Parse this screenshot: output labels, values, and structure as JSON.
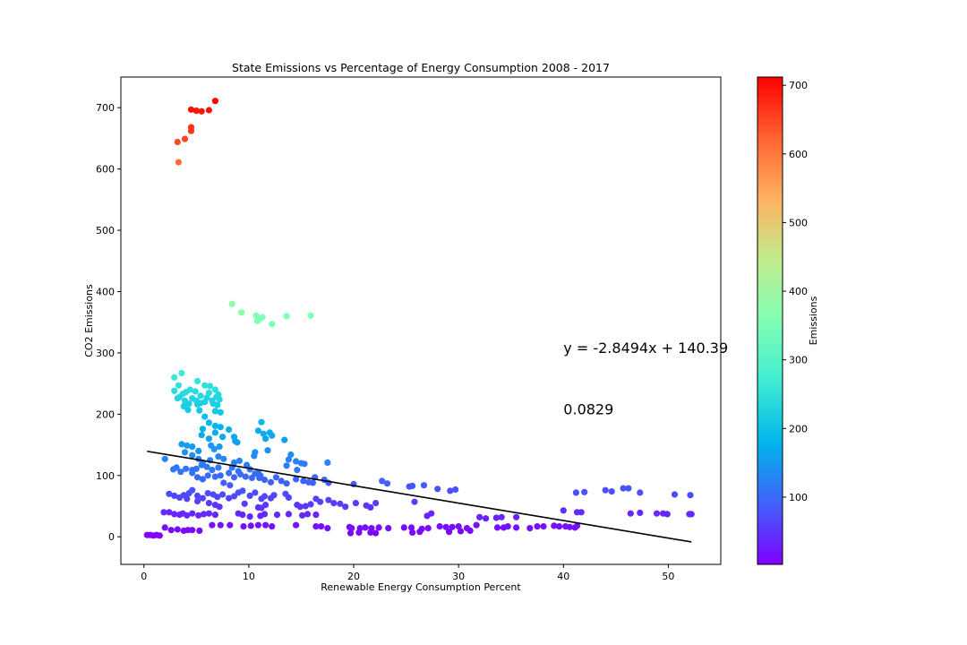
{
  "chart_data": {
    "type": "scatter",
    "title": "State Emissions vs Percentage of Energy Consumption 2008 - 2017",
    "xlabel": "Renewable Energy Consumption Percent",
    "ylabel": "CO2 Emissions",
    "xlim": [
      -2.2,
      55
    ],
    "ylim": [
      -45,
      750
    ],
    "xticks": [
      0,
      10,
      20,
      30,
      40,
      50
    ],
    "yticks": [
      0,
      100,
      200,
      300,
      400,
      500,
      600,
      700
    ],
    "grid": false,
    "colormap": "rainbow",
    "colorbar": {
      "label": "Emissions",
      "range": [
        2,
        712
      ],
      "ticks": [
        100,
        200,
        300,
        400,
        500,
        600,
        700
      ]
    },
    "regression": {
      "slope": -2.8494,
      "intercept": 140.39,
      "x_range": [
        0.3,
        52.2
      ],
      "color": "#000000"
    },
    "annotations": [
      {
        "text": "y = -2.8494x + 140.39",
        "x": 40,
        "y": 300
      },
      {
        "text": "0.0829",
        "x": 40,
        "y": 200
      }
    ],
    "points": [
      [
        4.5,
        697
      ],
      [
        5.0,
        695
      ],
      [
        5.5,
        694
      ],
      [
        6.2,
        696
      ],
      [
        6.8,
        711
      ],
      [
        4.5,
        668
      ],
      [
        4.5,
        662
      ],
      [
        3.9,
        649
      ],
      [
        3.2,
        644
      ],
      [
        3.3,
        611
      ],
      [
        8.4,
        380
      ],
      [
        9.3,
        366
      ],
      [
        10.7,
        361
      ],
      [
        11.0,
        355
      ],
      [
        11.3,
        358
      ],
      [
        10.8,
        352
      ],
      [
        12.2,
        347
      ],
      [
        13.6,
        360
      ],
      [
        15.9,
        361
      ],
      [
        3.6,
        267
      ],
      [
        2.9,
        260
      ],
      [
        5.1,
        254
      ],
      [
        5.8,
        247
      ],
      [
        6.3,
        246
      ],
      [
        6.8,
        240
      ],
      [
        7.1,
        232
      ],
      [
        3.3,
        247
      ],
      [
        2.9,
        238
      ],
      [
        3.7,
        233
      ],
      [
        4.4,
        240
      ],
      [
        4.9,
        237
      ],
      [
        5.4,
        230
      ],
      [
        6.0,
        227
      ],
      [
        6.5,
        222
      ],
      [
        7.2,
        224
      ],
      [
        3.2,
        226
      ],
      [
        3.9,
        222
      ],
      [
        4.3,
        217
      ],
      [
        5.1,
        216
      ],
      [
        5.8,
        220
      ],
      [
        6.6,
        217
      ],
      [
        3.8,
        213
      ],
      [
        4.2,
        207
      ],
      [
        5.3,
        206
      ],
      [
        5.8,
        196
      ],
      [
        6.8,
        205
      ],
      [
        7.3,
        203
      ],
      [
        4.6,
        226
      ],
      [
        5.4,
        218
      ],
      [
        3.4,
        228
      ],
      [
        6.2,
        235
      ],
      [
        6.9,
        228
      ],
      [
        7.0,
        215
      ],
      [
        4.0,
        236
      ],
      [
        5.0,
        222
      ],
      [
        6.2,
        186
      ],
      [
        6.8,
        181
      ],
      [
        7.3,
        179
      ],
      [
        5.6,
        176
      ],
      [
        8.1,
        175
      ],
      [
        6.8,
        170
      ],
      [
        8.6,
        163
      ],
      [
        7.5,
        163
      ],
      [
        6.2,
        160
      ],
      [
        5.5,
        166
      ],
      [
        6.4,
        149
      ],
      [
        8.7,
        156
      ],
      [
        8.9,
        154
      ],
      [
        7.2,
        147
      ],
      [
        6.7,
        143
      ],
      [
        5.2,
        140
      ],
      [
        4.6,
        147
      ],
      [
        4.1,
        149
      ],
      [
        3.6,
        151
      ],
      [
        3.9,
        138
      ],
      [
        4.6,
        133
      ],
      [
        5.2,
        127
      ],
      [
        5.6,
        121
      ],
      [
        6.3,
        125
      ],
      [
        7.1,
        131
      ],
      [
        7.6,
        127
      ],
      [
        8.6,
        121
      ],
      [
        9.1,
        124
      ],
      [
        9.8,
        117
      ],
      [
        8.4,
        113
      ],
      [
        7.1,
        113
      ],
      [
        6.5,
        109
      ],
      [
        6.0,
        114
      ],
      [
        5.5,
        117
      ],
      [
        5.0,
        111
      ],
      [
        4.6,
        109
      ],
      [
        4.0,
        111
      ],
      [
        3.5,
        106
      ],
      [
        3.1,
        113
      ],
      [
        2.8,
        110
      ],
      [
        2.0,
        127
      ],
      [
        7.3,
        100
      ],
      [
        8.1,
        104
      ],
      [
        8.6,
        97
      ],
      [
        9.2,
        102
      ],
      [
        9.7,
        98
      ],
      [
        10.3,
        96
      ],
      [
        10.6,
        103
      ],
      [
        11.1,
        100
      ],
      [
        11.5,
        93
      ],
      [
        12.1,
        89
      ],
      [
        12.6,
        97
      ],
      [
        13.1,
        91
      ],
      [
        13.6,
        87
      ],
      [
        14.5,
        94
      ],
      [
        15.2,
        91
      ],
      [
        15.7,
        89
      ],
      [
        16.3,
        97
      ],
      [
        17.2,
        93
      ],
      [
        7.6,
        88
      ],
      [
        8.2,
        84
      ],
      [
        6.1,
        100
      ],
      [
        5.6,
        94
      ],
      [
        5.1,
        97
      ],
      [
        4.6,
        104
      ],
      [
        6.8,
        98
      ],
      [
        9.0,
        107
      ],
      [
        10.1,
        110
      ],
      [
        11.2,
        187
      ],
      [
        10.9,
        173
      ],
      [
        11.4,
        168
      ],
      [
        11.6,
        160
      ],
      [
        12.2,
        165
      ],
      [
        11.8,
        141
      ],
      [
        12.0,
        170
      ],
      [
        13.4,
        158
      ],
      [
        10.5,
        132
      ],
      [
        10.6,
        138
      ],
      [
        14.0,
        134
      ],
      [
        13.8,
        126
      ],
      [
        14.5,
        123
      ],
      [
        15.0,
        120
      ],
      [
        15.3,
        119
      ],
      [
        14.6,
        109
      ],
      [
        17.5,
        121
      ],
      [
        13.6,
        116
      ],
      [
        10.9,
        104
      ],
      [
        11.0,
        96
      ],
      [
        16.1,
        88
      ],
      [
        17.6,
        88
      ],
      [
        20.0,
        86
      ],
      [
        22.7,
        91
      ],
      [
        23.2,
        87
      ],
      [
        25.3,
        82
      ],
      [
        25.6,
        83
      ],
      [
        26.7,
        84
      ],
      [
        28.0,
        78
      ],
      [
        29.2,
        75
      ],
      [
        29.7,
        77
      ],
      [
        2.4,
        70
      ],
      [
        2.9,
        67
      ],
      [
        3.4,
        64
      ],
      [
        3.8,
        68
      ],
      [
        4.3,
        71
      ],
      [
        4.6,
        76
      ],
      [
        5.1,
        67
      ],
      [
        5.6,
        63
      ],
      [
        6.1,
        71
      ],
      [
        6.6,
        69
      ],
      [
        7.0,
        65
      ],
      [
        7.5,
        69
      ],
      [
        8.1,
        63
      ],
      [
        8.6,
        66
      ],
      [
        9.0,
        72
      ],
      [
        9.4,
        75
      ],
      [
        10.1,
        67
      ],
      [
        10.6,
        72
      ],
      [
        11.2,
        62
      ],
      [
        11.5,
        66
      ],
      [
        12.1,
        63
      ],
      [
        12.4,
        68
      ],
      [
        13.5,
        70
      ],
      [
        13.8,
        64
      ],
      [
        4.1,
        62
      ],
      [
        5.1,
        58
      ],
      [
        6.2,
        55
      ],
      [
        6.8,
        52
      ],
      [
        7.2,
        49
      ],
      [
        9.6,
        54
      ],
      [
        10.9,
        48
      ],
      [
        11.2,
        47
      ],
      [
        11.6,
        52
      ],
      [
        14.6,
        52
      ],
      [
        14.9,
        49
      ],
      [
        15.4,
        50
      ],
      [
        15.9,
        53
      ],
      [
        16.4,
        62
      ],
      [
        16.8,
        57
      ],
      [
        17.6,
        60
      ],
      [
        18.1,
        55
      ],
      [
        18.7,
        54
      ],
      [
        19.2,
        49
      ],
      [
        20.2,
        55
      ],
      [
        21.2,
        51
      ],
      [
        21.6,
        48
      ],
      [
        22.1,
        55
      ],
      [
        25.8,
        57
      ],
      [
        41.2,
        72
      ],
      [
        42.0,
        73
      ],
      [
        44.0,
        76
      ],
      [
        44.6,
        74
      ],
      [
        45.7,
        79
      ],
      [
        46.2,
        79
      ],
      [
        47.3,
        72
      ],
      [
        50.6,
        69
      ],
      [
        52.1,
        68
      ],
      [
        1.9,
        40
      ],
      [
        2.4,
        40
      ],
      [
        2.9,
        37
      ],
      [
        3.4,
        36
      ],
      [
        3.7,
        38
      ],
      [
        4.1,
        35
      ],
      [
        4.6,
        38
      ],
      [
        5.2,
        35
      ],
      [
        5.7,
        37
      ],
      [
        6.2,
        38
      ],
      [
        6.8,
        36
      ],
      [
        9.0,
        38
      ],
      [
        9.4,
        36
      ],
      [
        10.1,
        33
      ],
      [
        11.1,
        34
      ],
      [
        11.5,
        37
      ],
      [
        12.7,
        36
      ],
      [
        13.8,
        37
      ],
      [
        15.1,
        35
      ],
      [
        15.6,
        37
      ],
      [
        16.4,
        36
      ],
      [
        27.0,
        34
      ],
      [
        27.4,
        38
      ],
      [
        32.0,
        32
      ],
      [
        32.6,
        30
      ],
      [
        33.6,
        31
      ],
      [
        34.1,
        32
      ],
      [
        35.5,
        32
      ],
      [
        40.0,
        43
      ],
      [
        41.3,
        40
      ],
      [
        41.7,
        40
      ],
      [
        46.4,
        38
      ],
      [
        47.3,
        39
      ],
      [
        48.9,
        38
      ],
      [
        49.5,
        38
      ],
      [
        49.9,
        37
      ],
      [
        52.0,
        37
      ],
      [
        52.2,
        37
      ],
      [
        2.0,
        15
      ],
      [
        2.6,
        11
      ],
      [
        3.2,
        12
      ],
      [
        3.8,
        10
      ],
      [
        4.2,
        11
      ],
      [
        4.6,
        11
      ],
      [
        5.3,
        10
      ],
      [
        6.5,
        19
      ],
      [
        7.3,
        19
      ],
      [
        8.2,
        19
      ],
      [
        9.5,
        17
      ],
      [
        10.2,
        18
      ],
      [
        10.9,
        19
      ],
      [
        11.6,
        19
      ],
      [
        12.2,
        17
      ],
      [
        14.5,
        19
      ],
      [
        16.4,
        17
      ],
      [
        16.9,
        17
      ],
      [
        17.5,
        14
      ],
      [
        19.6,
        16
      ],
      [
        19.8,
        14
      ],
      [
        20.6,
        14
      ],
      [
        21.1,
        15
      ],
      [
        21.7,
        14
      ],
      [
        22.4,
        15
      ],
      [
        23.3,
        14
      ],
      [
        24.8,
        15
      ],
      [
        25.5,
        15
      ],
      [
        26.5,
        13
      ],
      [
        27.1,
        14
      ],
      [
        28.2,
        17
      ],
      [
        28.8,
        16
      ],
      [
        29.4,
        16
      ],
      [
        30.0,
        17
      ],
      [
        30.8,
        14
      ],
      [
        31.7,
        19
      ],
      [
        33.7,
        15
      ],
      [
        34.3,
        15
      ],
      [
        34.7,
        17
      ],
      [
        35.5,
        15
      ],
      [
        36.8,
        14
      ],
      [
        37.5,
        17
      ],
      [
        38.1,
        17
      ],
      [
        39.1,
        18
      ],
      [
        39.6,
        17
      ],
      [
        40.2,
        17
      ],
      [
        40.6,
        16
      ],
      [
        41.1,
        15
      ],
      [
        41.3,
        18
      ],
      [
        0.3,
        3
      ],
      [
        0.6,
        3
      ],
      [
        0.9,
        2
      ],
      [
        1.2,
        3
      ],
      [
        1.5,
        2
      ],
      [
        19.7,
        6
      ],
      [
        20.5,
        7
      ],
      [
        21.6,
        7
      ],
      [
        22.1,
        6
      ],
      [
        25.6,
        7
      ],
      [
        26.3,
        8
      ],
      [
        29.1,
        8
      ],
      [
        30.2,
        9
      ],
      [
        31.1,
        10
      ]
    ]
  }
}
